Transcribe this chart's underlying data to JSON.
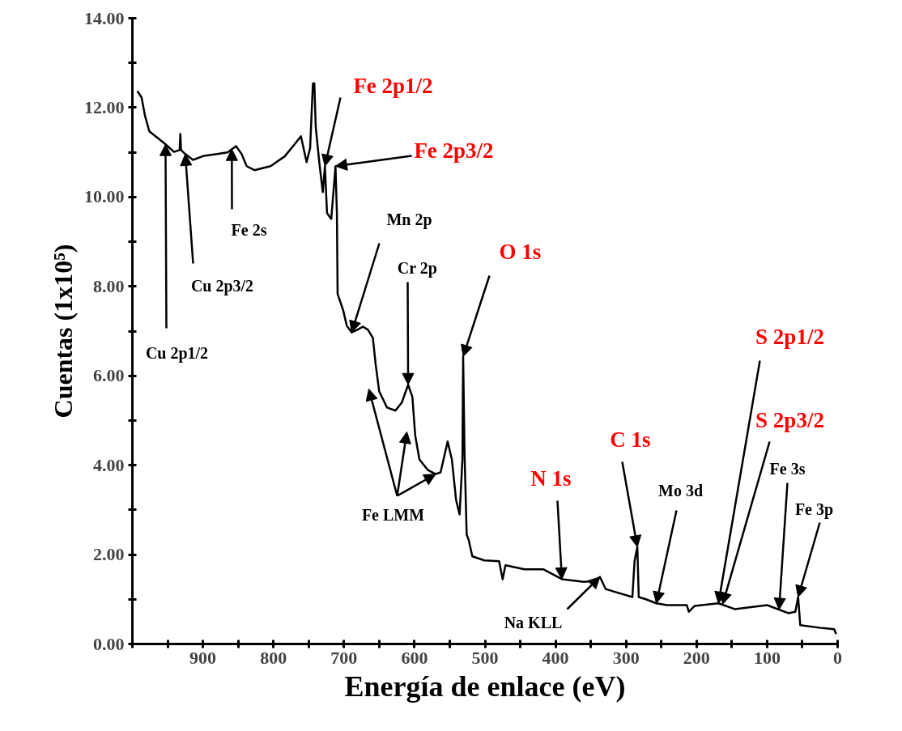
{
  "chart_data": {
    "type": "line",
    "xlabel": "Energía de enlace (eV)",
    "ylabel": "Cuentas (1x10⁵)",
    "xlim": [
      1000,
      0
    ],
    "ylim": [
      0,
      14
    ],
    "xticks": [
      0,
      {
        "value": 50,
        "label": null
      },
      100,
      {
        "value": 150,
        "label": null
      },
      200,
      {
        "value": 250,
        "label": null
      },
      300,
      {
        "value": 350,
        "label": null
      },
      400,
      {
        "value": 450,
        "label": null
      },
      500,
      {
        "value": 550,
        "label": null
      },
      600,
      {
        "value": 650,
        "label": null
      },
      700,
      {
        "value": 750,
        "label": null
      },
      800,
      {
        "value": 850,
        "label": null
      },
      900,
      {
        "value": 950,
        "label": null
      },
      {
        "value": 1000,
        "label": null
      }
    ],
    "yticks": [
      {
        "value": 0,
        "label": "0.00"
      },
      {
        "value": 1,
        "label": null
      },
      {
        "value": 2,
        "label": "2.00"
      },
      {
        "value": 3,
        "label": null
      },
      {
        "value": 4,
        "label": "4.00"
      },
      {
        "value": 5,
        "label": null
      },
      {
        "value": 6,
        "label": "6.00"
      },
      {
        "value": 7,
        "label": null
      },
      {
        "value": 8,
        "label": "8.00"
      },
      {
        "value": 9,
        "label": null
      },
      {
        "value": 10,
        "label": "10.00"
      },
      {
        "value": 11,
        "label": null
      },
      {
        "value": 12,
        "label": "12.00"
      },
      {
        "value": 13,
        "label": null
      },
      {
        "value": 14,
        "label": "14.00"
      }
    ],
    "grid": false,
    "marker": "none",
    "line_style": "solid",
    "series": [
      {
        "color": "#000000",
        "x": [
          993,
          987,
          982,
          976,
          964,
          953,
          941,
          933,
          932,
          931,
          925,
          914,
          899,
          880,
          865,
          853,
          845,
          838,
          827,
          804,
          784,
          770,
          761,
          753,
          748,
          744,
          742,
          740,
          735,
          730,
          727,
          724,
          718,
          712,
          710,
          709,
          701,
          696,
          689,
          681,
          673,
          666,
          659,
          655,
          650,
          639,
          627,
          618,
          609,
          603,
          599,
          593,
          581,
          570,
          563,
          553,
          547,
          541,
          536,
          532,
          531,
          529,
          526,
          523,
          518,
          501,
          480,
          475,
          471,
          444,
          417,
          391,
          360,
          345,
          337,
          329,
          306,
          291,
          288,
          284,
          282,
          272,
          257,
          242,
          214,
          211,
          203,
          169,
          146,
          100,
          70,
          60,
          56,
          53,
          24,
          5,
          2
        ],
        "values": [
          12.37,
          12.23,
          11.81,
          11.47,
          11.32,
          11.18,
          11.01,
          11.05,
          11.41,
          11.05,
          10.96,
          10.83,
          10.92,
          10.96,
          11.0,
          11.14,
          10.96,
          10.69,
          10.6,
          10.69,
          10.91,
          11.18,
          11.36,
          10.78,
          11.09,
          12.54,
          12.54,
          11.56,
          10.78,
          10.11,
          10.69,
          9.64,
          9.51,
          10.69,
          9.64,
          7.83,
          7.46,
          7.12,
          6.97,
          7.03,
          7.1,
          7.03,
          6.85,
          6.25,
          5.65,
          5.29,
          5.22,
          5.4,
          5.8,
          5.53,
          4.67,
          4.13,
          3.89,
          3.8,
          3.84,
          4.53,
          4.13,
          3.22,
          2.9,
          4.13,
          6.43,
          4.26,
          2.45,
          2.32,
          1.96,
          1.87,
          1.85,
          1.45,
          1.76,
          1.67,
          1.67,
          1.45,
          1.39,
          1.41,
          1.5,
          1.23,
          1.12,
          1.05,
          1.85,
          2.17,
          1.05,
          1.0,
          0.91,
          0.87,
          0.87,
          0.72,
          0.85,
          0.91,
          0.78,
          0.87,
          0.69,
          0.72,
          1.05,
          0.42,
          0.36,
          0.33,
          0.22
        ]
      }
    ],
    "annotations": [
      {
        "text": "Fe 2p1/2",
        "x": 727,
        "y": 10.69
      },
      {
        "text": "Fe 2p3/2",
        "x": 712,
        "y": 10.69
      },
      {
        "text": "Cu 2p1/2",
        "x": 953,
        "y": 11.18
      },
      {
        "text": "Cu 2p3/2",
        "x": 925,
        "y": 10.96
      },
      {
        "text": "Fe 2s",
        "x": 859,
        "y": 11.07
      },
      {
        "text": "Mn 2p",
        "x": 689,
        "y": 6.97
      },
      {
        "text": "Cr 2p",
        "x": 609,
        "y": 5.8
      },
      {
        "text": "O 1s",
        "x": 531,
        "y": 6.43
      },
      {
        "text": "Fe LMM",
        "x": 570,
        "y": 3.8
      },
      {
        "text": "N 1s",
        "x": 391,
        "y": 1.45
      },
      {
        "text": "Na KLL",
        "x": 337,
        "y": 1.5
      },
      {
        "text": "C 1s",
        "x": 284,
        "y": 2.17
      },
      {
        "text": "Mo 3d",
        "x": 257,
        "y": 0.91
      },
      {
        "text": "S 2p1/2",
        "x": 169,
        "y": 0.91
      },
      {
        "text": "S 2p3/2",
        "x": 163,
        "y": 0.89
      },
      {
        "text": "Fe 3s",
        "x": 83,
        "y": 0.77
      },
      {
        "text": "Fe 3p",
        "x": 56,
        "y": 1.05
      }
    ]
  }
}
